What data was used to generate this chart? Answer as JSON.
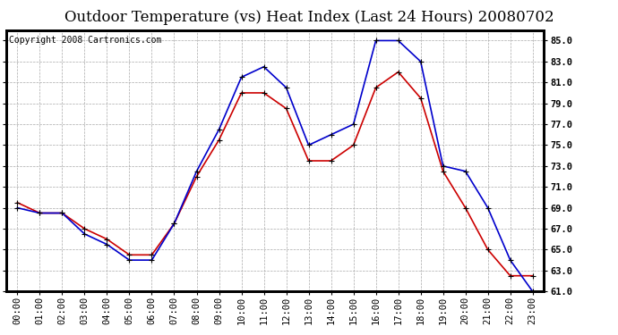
{
  "title": "Outdoor Temperature (vs) Heat Index (Last 24 Hours) 20080702",
  "copyright": "Copyright 2008 Cartronics.com",
  "hours": [
    "00:00",
    "01:00",
    "02:00",
    "03:00",
    "04:00",
    "05:00",
    "06:00",
    "07:00",
    "08:00",
    "09:00",
    "10:00",
    "11:00",
    "12:00",
    "13:00",
    "14:00",
    "15:00",
    "16:00",
    "17:00",
    "18:00",
    "19:00",
    "20:00",
    "21:00",
    "22:00",
    "23:00"
  ],
  "outdoor_temp": [
    69.5,
    68.5,
    68.5,
    67.0,
    66.0,
    64.5,
    64.5,
    67.5,
    72.0,
    75.5,
    80.0,
    80.0,
    78.5,
    73.5,
    73.5,
    75.0,
    80.5,
    82.0,
    79.5,
    72.5,
    69.0,
    65.0,
    62.5,
    62.5
  ],
  "heat_index": [
    69.0,
    68.5,
    68.5,
    66.5,
    65.5,
    64.0,
    64.0,
    67.5,
    72.5,
    76.5,
    81.5,
    82.5,
    80.5,
    75.0,
    76.0,
    77.0,
    85.0,
    85.0,
    83.0,
    73.0,
    72.5,
    69.0,
    64.0,
    61.0
  ],
  "outdoor_color": "#cc0000",
  "heat_index_color": "#0000cc",
  "background_color": "#ffffff",
  "grid_color": "#aaaaaa",
  "ylim": [
    61.0,
    86.0
  ],
  "yticks": [
    61.0,
    63.0,
    65.0,
    67.0,
    69.0,
    71.0,
    73.0,
    75.0,
    77.0,
    79.0,
    81.0,
    83.0,
    85.0
  ],
  "title_fontsize": 12,
  "copyright_fontsize": 7,
  "tick_fontsize": 7.5,
  "marker": "+",
  "markersize": 5,
  "linewidth": 1.2
}
